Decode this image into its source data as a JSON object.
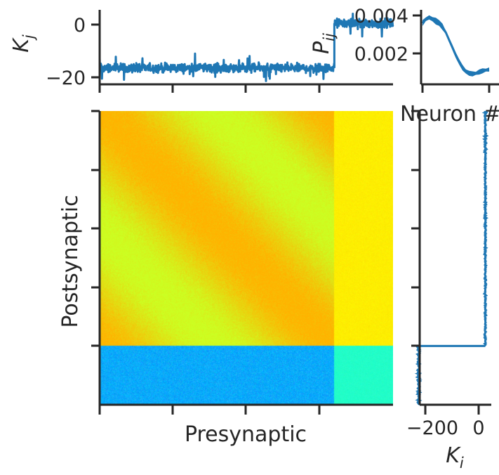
{
  "chart_data": [
    {
      "panel": "top-marginal",
      "type": "line",
      "ylabel": "K_j",
      "xlim": [
        0,
        400
      ],
      "ylim": [
        -23,
        5
      ],
      "yticks": [
        0,
        -20
      ],
      "yticklabels": [
        "0",
        "−20"
      ],
      "color": "#1f77b4",
      "series": [
        {
          "segment": "excitatory",
          "x_range": [
            0,
            320
          ],
          "mean": -16.5,
          "noise_spread": 2.5
        },
        {
          "segment": "inhibitory",
          "x_range": [
            320,
            400
          ],
          "mean": 0.5,
          "noise_spread": 2.5
        }
      ]
    },
    {
      "panel": "top-right-profile",
      "type": "line",
      "ylabel": "P_ij",
      "xlabel": "Neuron #",
      "ylim": [
        0.0002,
        0.0042
      ],
      "yticks": [
        0.004,
        0.002
      ],
      "yticklabels": [
        "0.004",
        "0.002"
      ],
      "color": "#1f77b4",
      "x": [
        0,
        0.05,
        0.1,
        0.15,
        0.2,
        0.25,
        0.3,
        0.35,
        0.4,
        0.45,
        0.5,
        0.55,
        0.6,
        0.65,
        0.7,
        0.75,
        0.8,
        0.85,
        0.9,
        0.95,
        1.0
      ],
      "y": [
        0.0036,
        0.0038,
        0.0039,
        0.0038,
        0.0037,
        0.0036,
        0.0034,
        0.0031,
        0.0027,
        0.0023,
        0.0019,
        0.00155,
        0.00125,
        0.00105,
        0.00095,
        0.00092,
        0.00095,
        0.00102,
        0.00108,
        0.00112,
        0.00115
      ],
      "band": 0.00025
    },
    {
      "panel": "main-heatmap",
      "type": "heatmap",
      "xlabel": "Presynaptic",
      "ylabel": "Postsynaptic",
      "blocks": [
        {
          "name": "E-to-E",
          "pattern": "diagonal-bands",
          "colors": [
            "#ffb300",
            "#ccff22"
          ]
        },
        {
          "name": "I-to-E",
          "color": "#ffee00"
        },
        {
          "name": "E-to-I",
          "color": "#0aaaff"
        },
        {
          "name": "I-to-I",
          "color": "#22ffc8"
        }
      ],
      "excitatory_fraction": 0.8
    },
    {
      "panel": "right-marginal",
      "type": "line",
      "xlabel": "K_i",
      "xlim": [
        -245,
        55
      ],
      "xticks": [
        -200,
        0
      ],
      "xticklabels": [
        "−200",
        "0"
      ],
      "color": "#1f77b4",
      "series": [
        {
          "segment": "excitatory",
          "y_range": [
            0,
            0.8
          ],
          "mean": 25,
          "noise_spread": 4
        },
        {
          "segment": "inhibitory",
          "y_range": [
            0.8,
            1.0
          ],
          "mean": -225,
          "noise_spread": 6
        }
      ]
    }
  ]
}
